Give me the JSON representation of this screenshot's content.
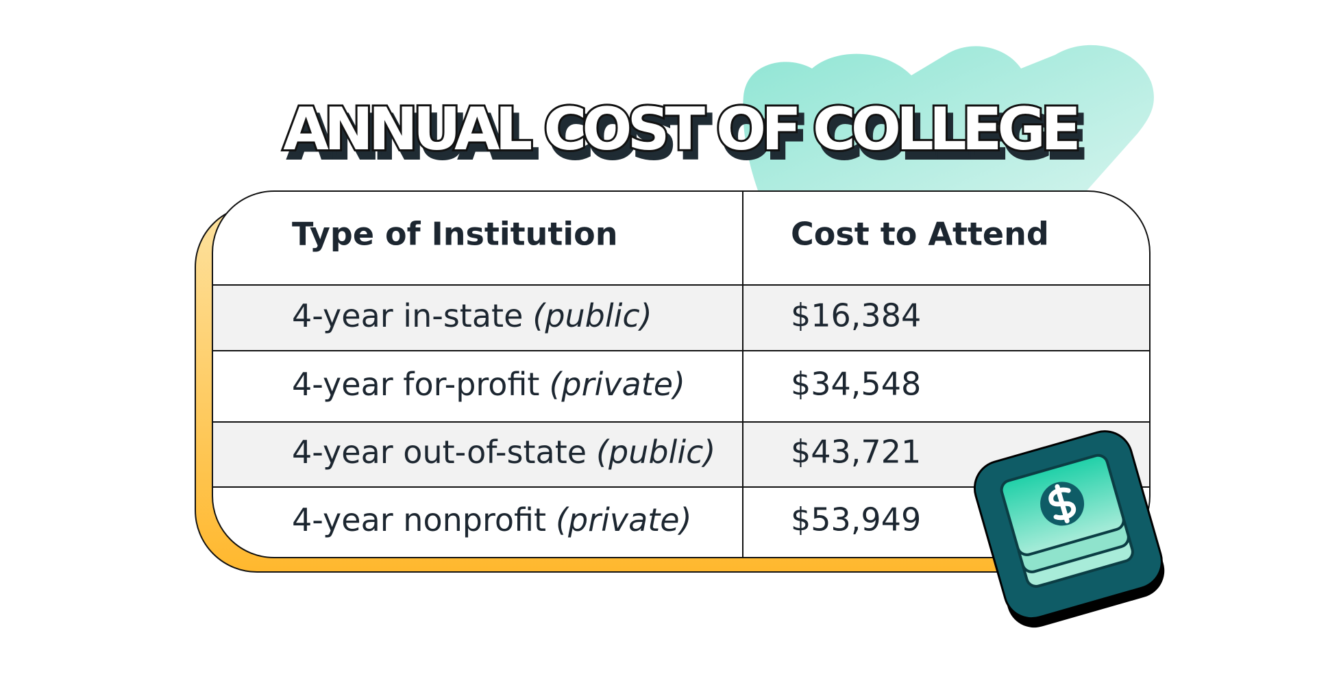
{
  "title": "ANNUAL COST OF COLLEGE",
  "table": {
    "headers": [
      "Type of Institution",
      "Cost to Attend"
    ],
    "rows": [
      {
        "type": "4-year in-state",
        "qualifier": "(public)",
        "cost": "$16,384"
      },
      {
        "type": "4-year for-profit",
        "qualifier": "(private)",
        "cost": "$34,548"
      },
      {
        "type": "4-year out-of-state",
        "qualifier": "(public)",
        "cost": "$43,721"
      },
      {
        "type": "4-year nonprofit",
        "qualifier": "(private)",
        "cost": "$53,949"
      }
    ]
  }
}
